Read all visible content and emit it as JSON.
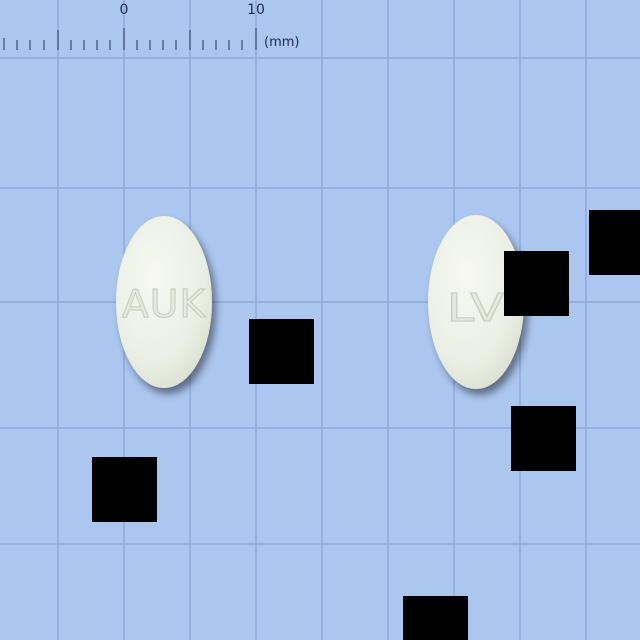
{
  "scene": {
    "background_color": "#abc6ef",
    "grid_color": "#8fa9dc"
  },
  "ruler": {
    "labels": [
      "0",
      "10"
    ],
    "unit": "(mm)"
  },
  "pills": [
    {
      "imprint": "AUK",
      "color": "#eef1e6"
    },
    {
      "imprint": "LV",
      "color": "#eef1e6"
    }
  ],
  "redactions": {
    "color": "#000000"
  }
}
